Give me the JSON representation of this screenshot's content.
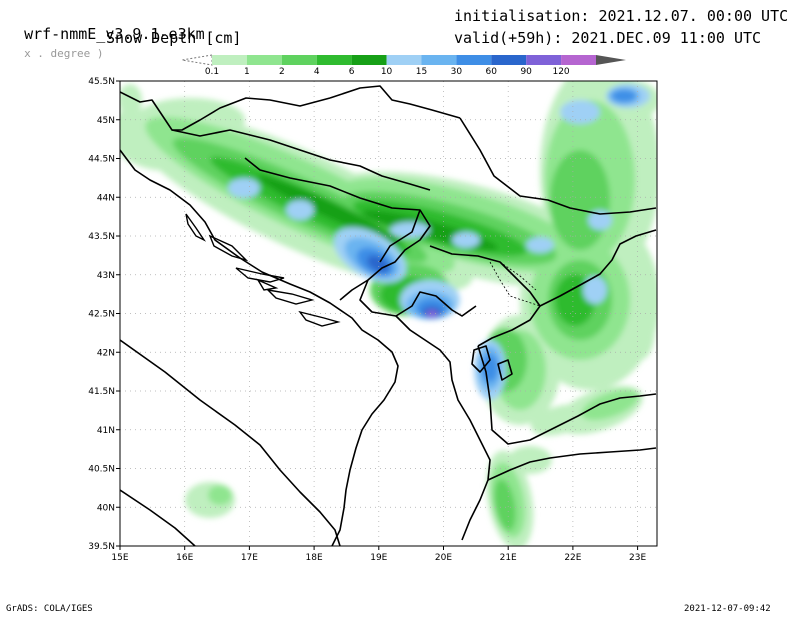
{
  "header": {
    "model": "wrf-nmmE_v3.9.1-e3km",
    "resolution_note": "x . degree )",
    "variable": "Snow Depth [cm]",
    "initialisation": "initialisation: 2021.12.07. 00:00 UTC",
    "valid": "valid(+59h): 2021.DEC.09 11:00 UTC"
  },
  "legend": {
    "bins": [
      {
        "label": "0.1",
        "color": "#bfefbf"
      },
      {
        "label": "1",
        "color": "#8fe58f"
      },
      {
        "label": "2",
        "color": "#5fd25f"
      },
      {
        "label": "4",
        "color": "#2fbb2f"
      },
      {
        "label": "6",
        "color": "#17a017"
      },
      {
        "label": "10",
        "color": "#9fd0f5"
      },
      {
        "label": "15",
        "color": "#6ab4f0"
      },
      {
        "label": "30",
        "color": "#3e8ee6"
      },
      {
        "label": "60",
        "color": "#2a66cc"
      },
      {
        "label": "90",
        "color": "#7f62d8"
      },
      {
        "label": "120",
        "color": "#b565d0"
      }
    ],
    "overflow_color": "#555555"
  },
  "map": {
    "lat_labels": [
      "45.5N",
      "45N",
      "44.5N",
      "44N",
      "43.5N",
      "43N",
      "42.5N",
      "42N",
      "41.5N",
      "41N",
      "40.5N",
      "40N",
      "39.5N"
    ],
    "lon_labels": [
      "15E",
      "16E",
      "17E",
      "18E",
      "19E",
      "20E",
      "21E",
      "22E",
      "23E"
    ],
    "lat_range": [
      39.5,
      45.5
    ],
    "lon_range": [
      15,
      23.3
    ],
    "colors": {
      "coast": "#000000",
      "grid": "#aaaaaa"
    }
  },
  "footer": {
    "left": "GrADS: COLA/IGES",
    "right": "2021-12-07-09:42"
  }
}
